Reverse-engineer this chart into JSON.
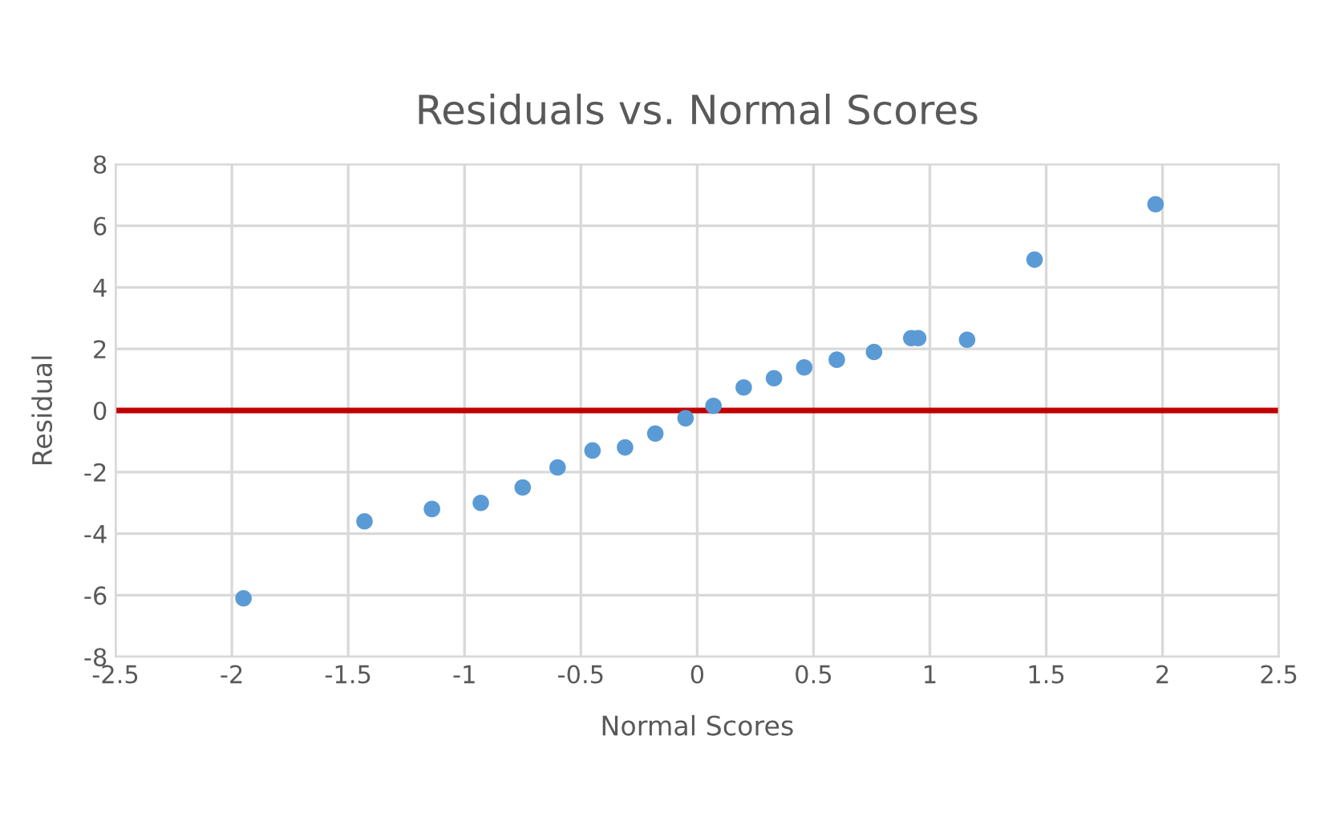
{
  "chart_data": {
    "type": "scatter",
    "title": "Residuals vs. Normal Scores",
    "xlabel": "Normal Scores",
    "ylabel": "Residual",
    "series": [
      {
        "color": "#5b9bd5",
        "x": [
          -1.95,
          -1.43,
          -1.14,
          -0.93,
          -0.75,
          -0.6,
          -0.45,
          -0.31,
          -0.18,
          -0.05,
          0.07,
          0.2,
          0.33,
          0.46,
          0.6,
          0.76,
          0.92,
          0.95,
          1.16,
          1.45,
          1.97
        ],
        "values": [
          -6.1,
          -3.6,
          -3.2,
          -3.0,
          -2.5,
          -1.85,
          -1.3,
          -1.2,
          -0.75,
          -0.25,
          0.15,
          0.75,
          1.05,
          1.4,
          1.65,
          1.9,
          2.35,
          2.35,
          2.3,
          4.9,
          6.7
        ]
      }
    ],
    "xlim": [
      -2.5,
      2.5
    ],
    "xticks": [
      -2.5,
      -2,
      -1.5,
      -1,
      -0.5,
      0,
      0.5,
      1,
      1.5,
      2,
      2.5
    ],
    "ylim": [
      -8,
      8
    ],
    "yticks": [
      -8,
      -6,
      -4,
      -2,
      0,
      2,
      4,
      6,
      8
    ],
    "ref_lines": [
      {
        "axis": "y",
        "value": 0,
        "color": "#c00000"
      }
    ],
    "grid": true,
    "marker": "circle"
  }
}
